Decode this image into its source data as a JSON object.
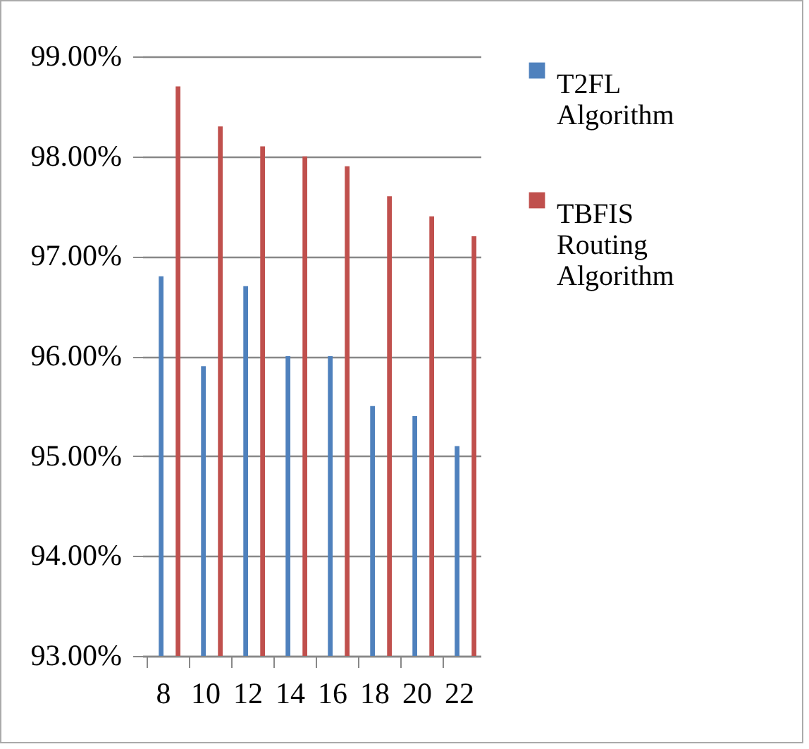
{
  "chart_data": {
    "type": "bar",
    "categories": [
      "8",
      "10",
      "12",
      "14",
      "16",
      "18",
      "20",
      "22"
    ],
    "series": [
      {
        "name": "T2FL Algorithm",
        "color": "#4f81bd",
        "values": [
          96.8,
          95.9,
          96.7,
          96.0,
          96.0,
          95.5,
          95.4,
          95.1
        ]
      },
      {
        "name": "TBFIS Routing Algorithm",
        "color": "#c0504d",
        "values": [
          98.7,
          98.3,
          98.1,
          98.0,
          97.9,
          97.6,
          97.4,
          97.2
        ]
      }
    ],
    "ylim": [
      93,
      99
    ],
    "yticks": [
      {
        "value": 93,
        "label": "93.00%"
      },
      {
        "value": 94,
        "label": "94.00%"
      },
      {
        "value": 95,
        "label": "95.00%"
      },
      {
        "value": 96,
        "label": "96.00%"
      },
      {
        "value": 97,
        "label": "97.00%"
      },
      {
        "value": 98,
        "label": "98.00%"
      },
      {
        "value": 99,
        "label": "99.00%"
      }
    ],
    "grid": "y",
    "legend": "right"
  }
}
